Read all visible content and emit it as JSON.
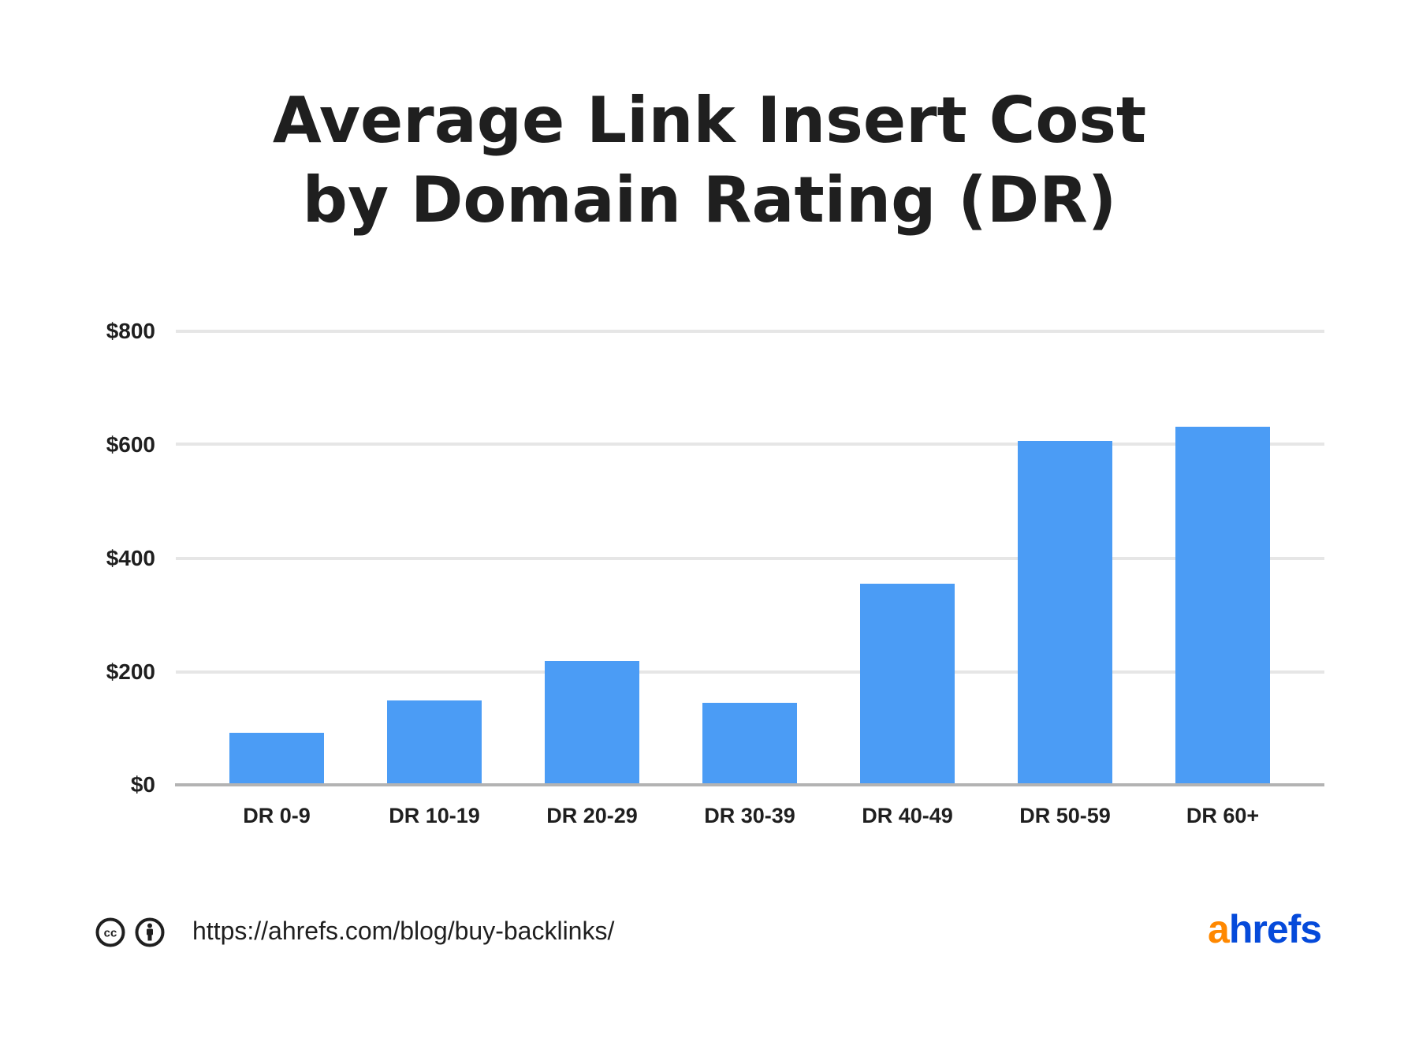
{
  "title": {
    "line1": "Average Link Insert Cost",
    "line2": "by Domain Rating (DR)"
  },
  "colors": {
    "bar": "#4b9cf5",
    "gridline": "#e6e6e6",
    "baseline": "#b3b3b3",
    "text": "#1f1f1f",
    "logo_a": "#ff8800",
    "logo_rest": "#054ada"
  },
  "yaxis": {
    "ticks": [
      "$0",
      "$200",
      "$400",
      "$600",
      "$800"
    ]
  },
  "xaxis": {
    "labels": [
      "DR 0-9",
      "DR 10-19",
      "DR 20-29",
      "DR 30-39",
      "DR 40-49",
      "DR 50-59",
      "DR 60+"
    ]
  },
  "footer": {
    "license_icons": [
      "creative-commons-icon",
      "attribution-icon"
    ],
    "url": "https://ahrefs.com/blog/buy-backlinks/",
    "logo": {
      "a": "a",
      "rest": "hrefs"
    }
  },
  "chart_data": {
    "type": "bar",
    "title": "Average Link Insert Cost by Domain Rating (DR)",
    "categories": [
      "DR 0-9",
      "DR 10-19",
      "DR 20-29",
      "DR 30-39",
      "DR 40-49",
      "DR 50-59",
      "DR 60+"
    ],
    "values": [
      92,
      149,
      218,
      145,
      355,
      607,
      632
    ],
    "xlabel": "",
    "ylabel": "",
    "ylim": [
      0,
      800
    ],
    "yticks": [
      0,
      200,
      400,
      600,
      800
    ],
    "ytick_labels": [
      "$0",
      "$200",
      "$400",
      "$600",
      "$800"
    ],
    "grid": true,
    "legend": null,
    "unit": "USD"
  }
}
